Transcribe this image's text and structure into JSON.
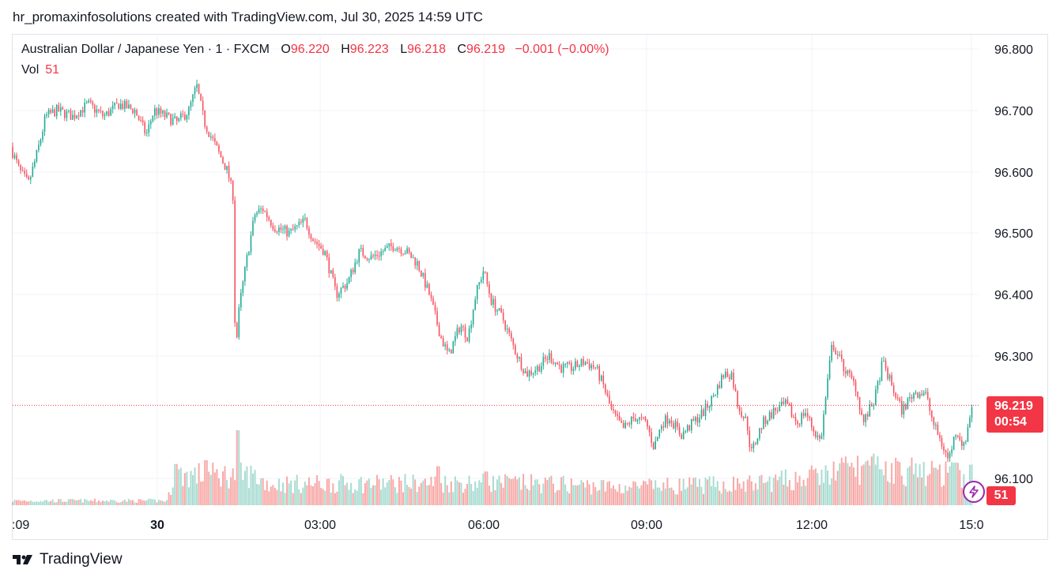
{
  "header": {
    "credit": "hr_promaxinfosolutions created with TradingView.com, Jul 30, 2025 14:59 UTC"
  },
  "legend": {
    "symbol": "Australian Dollar / Japanese Yen · 1 · FXCM",
    "o_label": "O",
    "o_value": "96.220",
    "h_label": "H",
    "h_value": "96.223",
    "l_label": "L",
    "l_value": "96.218",
    "c_label": "C",
    "c_value": "96.219",
    "change": "−0.001 (−0.00%)",
    "vol_label": "Vol",
    "vol_value": "51"
  },
  "price_tag": {
    "price": "96.219",
    "countdown": "00:54"
  },
  "volume_tag": "51",
  "footer": {
    "brand": "TradingView"
  },
  "colors": {
    "up": "#22ab94",
    "down": "#f7525f",
    "vol_up": "#a8dcd1",
    "vol_down": "#f7a9a7",
    "last": "#f23645",
    "grid": "#f0f3fa"
  },
  "icons": {
    "logo": "tradingview-logo-icon",
    "bolt": "lightning-bolt-icon"
  },
  "chart_data": {
    "type": "candlestick",
    "symbol": "AUD/JPY",
    "interval": "1 minute",
    "x_ticks": [
      ":09",
      "30",
      "03:00",
      "06:00",
      "09:00",
      "12:00",
      "15:0"
    ],
    "y_ticks": [
      "96.800",
      "96.700",
      "96.600",
      "96.500",
      "96.400",
      "96.300",
      "96.100"
    ],
    "ylim": [
      96.05,
      96.82
    ],
    "last_price": 96.219,
    "grid": true,
    "path": [
      [
        0,
        96.64
      ],
      [
        1.2,
        96.6
      ],
      [
        2.3,
        96.58
      ],
      [
        3.2,
        96.62
      ],
      [
        4.0,
        96.66
      ],
      [
        4.5,
        96.69
      ],
      [
        6.0,
        96.7
      ],
      [
        8.0,
        96.69
      ],
      [
        10.0,
        96.71
      ],
      [
        12.0,
        96.69
      ],
      [
        14.0,
        96.71
      ],
      [
        16.0,
        96.7
      ],
      [
        17.5,
        96.66
      ],
      [
        18.5,
        96.7
      ],
      [
        20.0,
        96.69
      ],
      [
        21.5,
        96.68
      ],
      [
        23.0,
        96.7
      ],
      [
        24.0,
        96.74
      ],
      [
        25.0,
        96.68
      ],
      [
        26.5,
        96.64
      ],
      [
        28.0,
        96.6
      ],
      [
        28.7,
        96.56
      ],
      [
        29.0,
        96.3
      ],
      [
        29.5,
        96.38
      ],
      [
        30.5,
        96.46
      ],
      [
        31.5,
        96.53
      ],
      [
        32.5,
        96.54
      ],
      [
        34.0,
        96.51
      ],
      [
        36.0,
        96.5
      ],
      [
        38.0,
        96.52
      ],
      [
        39.0,
        96.49
      ],
      [
        40.5,
        96.47
      ],
      [
        42.0,
        96.4
      ],
      [
        43.5,
        96.42
      ],
      [
        45.0,
        96.47
      ],
      [
        46.5,
        96.46
      ],
      [
        48.0,
        96.47
      ],
      [
        49.5,
        96.48
      ],
      [
        51.0,
        96.47
      ],
      [
        52.5,
        96.45
      ],
      [
        54.0,
        96.4
      ],
      [
        55.5,
        96.33
      ],
      [
        56.5,
        96.3
      ],
      [
        58.0,
        96.35
      ],
      [
        59.0,
        96.33
      ],
      [
        60.0,
        96.4
      ],
      [
        61.0,
        96.44
      ],
      [
        62.0,
        96.39
      ],
      [
        63.5,
        96.36
      ],
      [
        65.0,
        96.31
      ],
      [
        66.5,
        96.27
      ],
      [
        68.0,
        96.28
      ],
      [
        69.5,
        96.3
      ],
      [
        71.0,
        96.28
      ],
      [
        72.5,
        96.28
      ],
      [
        74.0,
        96.29
      ],
      [
        75.5,
        96.28
      ],
      [
        76.5,
        96.25
      ],
      [
        77.5,
        96.21
      ],
      [
        79.0,
        96.18
      ],
      [
        80.5,
        96.2
      ],
      [
        82.0,
        96.19
      ],
      [
        83.0,
        96.15
      ],
      [
        84.0,
        96.19
      ],
      [
        85.0,
        96.2
      ],
      [
        86.5,
        96.17
      ],
      [
        88.0,
        96.19
      ],
      [
        89.5,
        96.21
      ],
      [
        90.5,
        96.23
      ],
      [
        92.0,
        96.27
      ],
      [
        93.0,
        96.27
      ],
      [
        93.8,
        96.22
      ],
      [
        95.0,
        96.19
      ],
      [
        95.5,
        96.14
      ],
      [
        97.0,
        96.19
      ],
      [
        98.5,
        96.21
      ],
      [
        100.0,
        96.22
      ],
      [
        101.5,
        96.19
      ],
      [
        102.5,
        96.21
      ],
      [
        103.5,
        96.18
      ],
      [
        104.5,
        96.16
      ],
      [
        105.5,
        96.27
      ],
      [
        106.0,
        96.32
      ],
      [
        107.5,
        96.28
      ],
      [
        109.0,
        96.25
      ],
      [
        110.0,
        96.19
      ],
      [
        111.5,
        96.23
      ],
      [
        112.5,
        96.29
      ],
      [
        114.0,
        96.24
      ],
      [
        115.0,
        96.21
      ],
      [
        116.5,
        96.24
      ],
      [
        118.0,
        96.24
      ],
      [
        119.0,
        96.19
      ],
      [
        120.0,
        96.16
      ],
      [
        121.0,
        96.13
      ],
      [
        122.0,
        96.18
      ],
      [
        123.0,
        96.15
      ],
      [
        124.0,
        96.219
      ]
    ],
    "volume_max": 150,
    "volume_profile": [
      [
        0,
        6
      ],
      [
        20,
        6
      ],
      [
        20.5,
        28
      ],
      [
        21,
        40
      ],
      [
        31,
        40
      ],
      [
        33,
        28
      ],
      [
        60,
        30
      ],
      [
        62,
        30
      ],
      [
        70,
        28
      ],
      [
        78,
        24
      ],
      [
        95,
        28
      ],
      [
        104,
        38
      ],
      [
        108,
        50
      ],
      [
        124,
        40
      ]
    ],
    "volume_spikes": [
      [
        21,
        55
      ],
      [
        25,
        60
      ],
      [
        29,
        100
      ],
      [
        55,
        52
      ],
      [
        61,
        45
      ],
      [
        112,
        48
      ],
      [
        119,
        50
      ]
    ]
  }
}
